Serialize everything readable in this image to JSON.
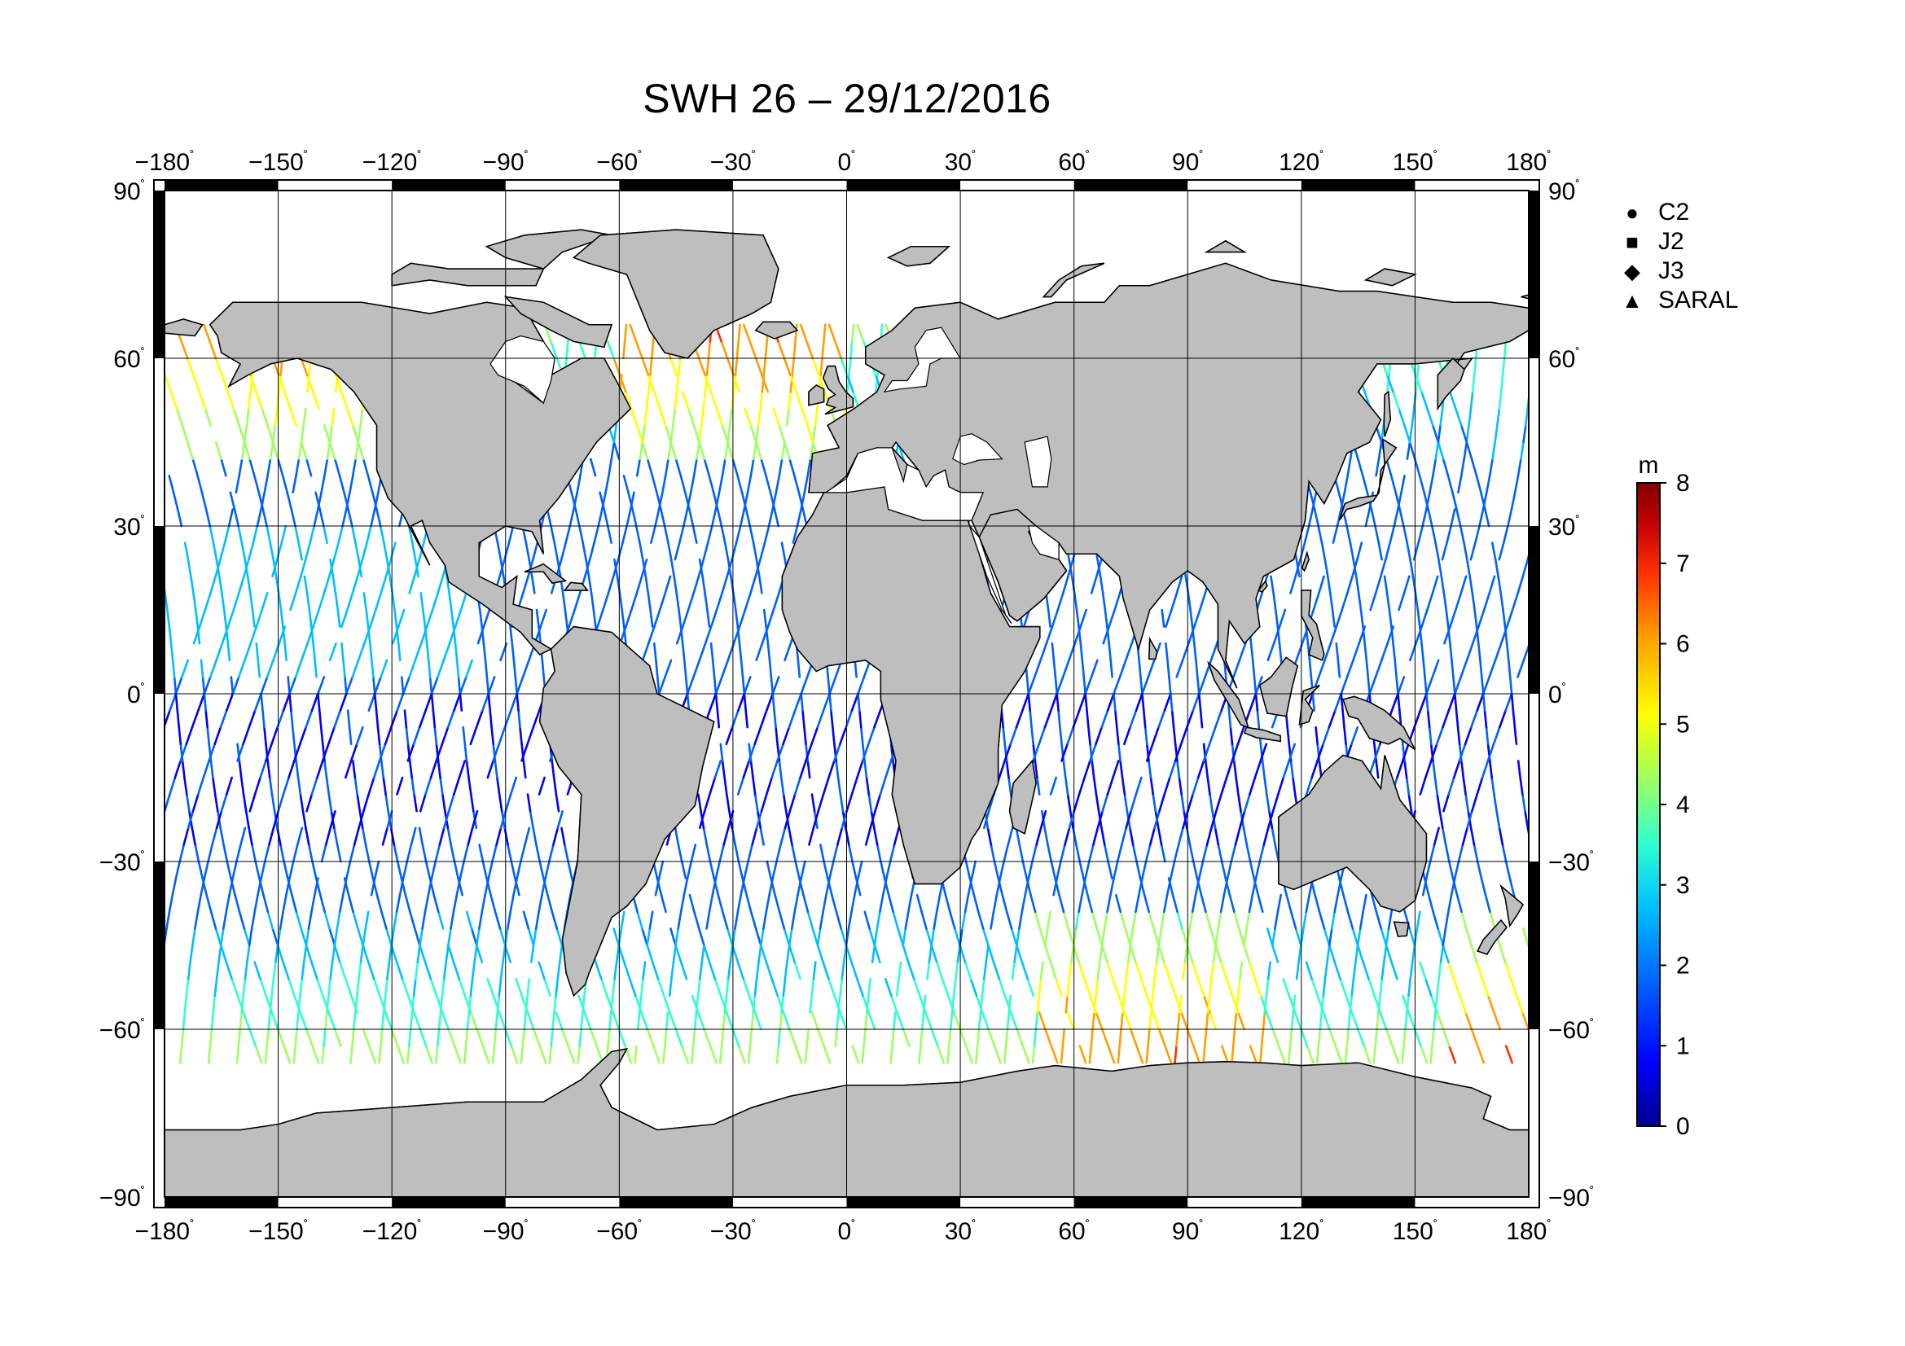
{
  "title": "SWH 26 – 29/12/2016",
  "map": {
    "projection": "equirectangular",
    "lon_range": [
      -180,
      180
    ],
    "lat_range": [
      -90,
      90
    ],
    "grid_lon_step": 30,
    "grid_lat_step": 30,
    "land_color": "#bebebe",
    "ocean_color": "#ffffff",
    "lon_ticks": [
      "−180",
      "−150",
      "−120",
      "−90",
      "−60",
      "−30",
      "0",
      "30",
      "60",
      "90",
      "120",
      "150",
      "180"
    ],
    "lat_ticks": [
      "90",
      "60",
      "30",
      "0",
      "−30",
      "−60",
      "−90"
    ],
    "degree_symbol": "˚"
  },
  "legend": {
    "items": [
      {
        "label": "C2",
        "marker": "circle-icon"
      },
      {
        "label": "J2",
        "marker": "square-icon"
      },
      {
        "label": "J3",
        "marker": "diamond-icon"
      },
      {
        "label": "SARAL",
        "marker": "triangle-icon"
      }
    ]
  },
  "colorbar": {
    "unit": "m",
    "min": 0,
    "max": 8,
    "ticks": [
      "0",
      "1",
      "2",
      "3",
      "4",
      "5",
      "6",
      "7",
      "8"
    ],
    "colors": [
      "#00008f",
      "#0000ff",
      "#0060ff",
      "#00bfff",
      "#30ffcf",
      "#9fff60",
      "#ffff00",
      "#ff9f00",
      "#ff3000",
      "#bf0000",
      "#800000"
    ]
  }
}
